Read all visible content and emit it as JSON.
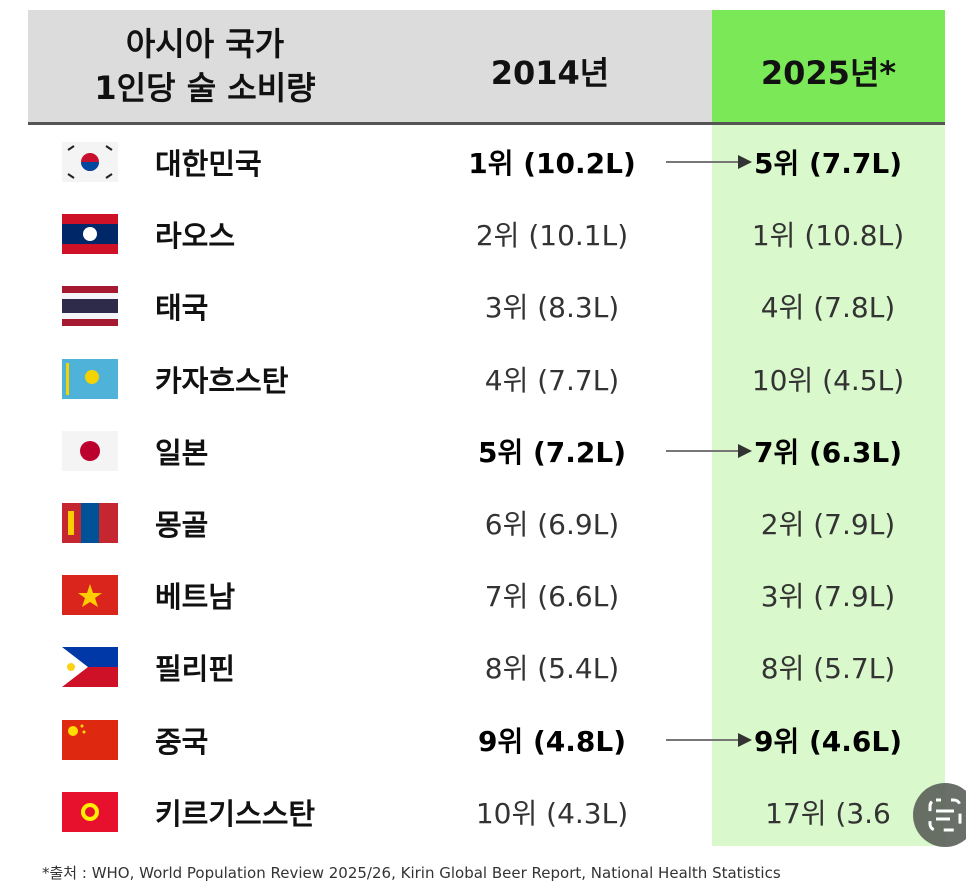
{
  "header": {
    "title_lines": [
      "아시아 국가",
      "1인당 술 소비량"
    ],
    "columns": [
      "2014년",
      "2025년*"
    ]
  },
  "rows": [
    {
      "country": "대한민국",
      "y2014": "1위 (10.2L)",
      "y2025": "5위 (7.7L)",
      "highlighted": true
    },
    {
      "country": "라오스",
      "y2014": "2위 (10.1L)",
      "y2025": "1위 (10.8L)",
      "highlighted": false
    },
    {
      "country": "태국",
      "y2014": "3위 (8.3L)",
      "y2025": "4위 (7.8L)",
      "highlighted": false
    },
    {
      "country": "카자흐스탄",
      "y2014": "4위 (7.7L)",
      "y2025": "10위 (4.5L)",
      "highlighted": false
    },
    {
      "country": "일본",
      "y2014": "5위 (7.2L)",
      "y2025": "7위 (6.3L)",
      "highlighted": true
    },
    {
      "country": "몽골",
      "y2014": "6위 (6.9L)",
      "y2025": "2위 (7.9L)",
      "highlighted": false
    },
    {
      "country": "베트남",
      "y2014": "7위 (6.6L)",
      "y2025": "3위 (7.9L)",
      "highlighted": false
    },
    {
      "country": "필리핀",
      "y2014": "8위 (5.4L)",
      "y2025": "8위 (5.7L)",
      "highlighted": false
    },
    {
      "country": "중국",
      "y2014": "9위 (4.8L)",
      "y2025": "9위 (4.6L)",
      "highlighted": true
    },
    {
      "country": "키르기스스탄",
      "y2014": "10위 (4.3L)",
      "y2025": "17위 (3.6",
      "highlighted": false
    }
  ],
  "footer": {
    "source": "*출처 : WHO, World Population Review 2025/26, Kirin Global Beer Report, National Health Statistics"
  }
}
